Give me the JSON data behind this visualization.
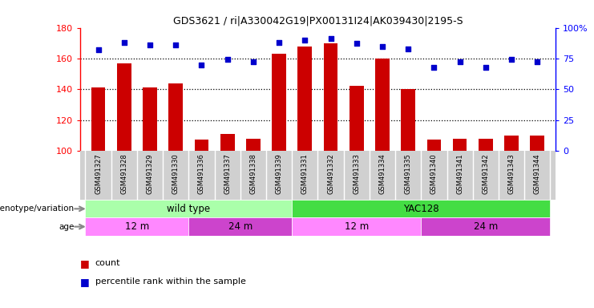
{
  "title": "GDS3621 / ri|A330042G19|PX00131I24|AK039430|2195-S",
  "samples": [
    "GSM491327",
    "GSM491328",
    "GSM491329",
    "GSM491330",
    "GSM491336",
    "GSM491337",
    "GSM491338",
    "GSM491339",
    "GSM491331",
    "GSM491332",
    "GSM491333",
    "GSM491334",
    "GSM491335",
    "GSM491340",
    "GSM491341",
    "GSM491342",
    "GSM491343",
    "GSM491344"
  ],
  "counts": [
    141,
    157,
    141,
    144,
    107,
    111,
    108,
    163,
    168,
    170,
    142,
    160,
    140,
    107,
    108,
    108,
    110,
    110
  ],
  "percentiles": [
    82,
    88,
    86,
    86,
    70,
    74,
    72,
    88,
    90,
    91,
    87,
    85,
    83,
    68,
    72,
    68,
    74,
    72
  ],
  "genotype_groups": [
    {
      "label": "wild type",
      "start": 0,
      "end": 8,
      "color": "#aaffaa"
    },
    {
      "label": "YAC128",
      "start": 8,
      "end": 18,
      "color": "#44dd44"
    }
  ],
  "age_groups": [
    {
      "label": "12 m",
      "start": 0,
      "end": 4,
      "color": "#ff88ff"
    },
    {
      "label": "24 m",
      "start": 4,
      "end": 8,
      "color": "#cc44cc"
    },
    {
      "label": "12 m",
      "start": 8,
      "end": 13,
      "color": "#ff88ff"
    },
    {
      "label": "24 m",
      "start": 13,
      "end": 18,
      "color": "#cc44cc"
    }
  ],
  "bar_color": "#cc0000",
  "dot_color": "#0000cc",
  "ylim_left": [
    100,
    180
  ],
  "ylim_right": [
    0,
    100
  ],
  "yticks_left": [
    100,
    120,
    140,
    160,
    180
  ],
  "yticks_right": [
    0,
    25,
    50,
    75,
    100
  ],
  "yticklabels_right": [
    "0",
    "25",
    "50",
    "75",
    "100%"
  ],
  "gridlines": [
    120,
    140,
    160
  ],
  "legend_count_color": "#cc0000",
  "legend_dot_color": "#0000cc",
  "tick_bg_color": "#d0d0d0"
}
